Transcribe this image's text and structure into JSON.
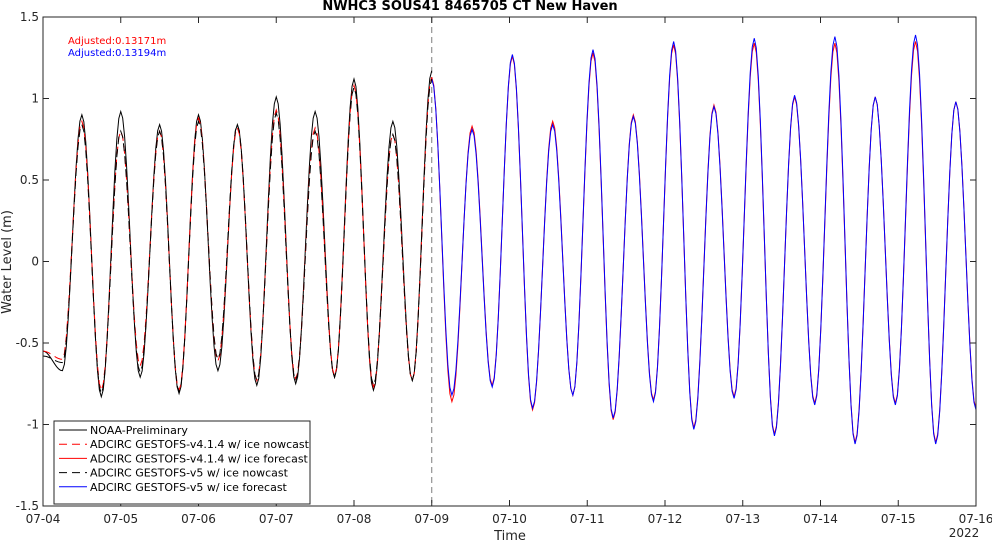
{
  "chart_data": {
    "type": "line",
    "title": "NWHC3 SOUS41 8465705 CT New Haven",
    "xlabel": "Time",
    "ylabel": "Water Level (m)",
    "x_tick_labels": [
      "07-04",
      "07-05",
      "07-06",
      "07-07",
      "07-08",
      "07-09",
      "07-10",
      "07-11",
      "07-12",
      "07-13",
      "07-14",
      "07-15",
      "07-16"
    ],
    "x_range_days": [
      4,
      16
    ],
    "x_year_label": "2022",
    "y_tick_labels": [
      "1.5",
      "1",
      "0.5",
      "0",
      "-0.5",
      "-1",
      "-1.5"
    ],
    "ylim": [
      -1.5,
      1.5
    ],
    "grid": false,
    "nowcast_end": "07-09",
    "annotations": [
      {
        "text": "Adjusted:0.13171m",
        "color": "#ff0000"
      },
      {
        "text": "Adjusted:0.13194m",
        "color": "#0000ff"
      }
    ],
    "legend_position": "bottom-left",
    "series": [
      {
        "name": "NOAA-Preliminary",
        "color": "#000000",
        "style": "solid",
        "x_start": 4.0,
        "x_end": 9.0,
        "extremes": [
          -0.55,
          -0.67,
          0.9,
          -0.83,
          0.92,
          -0.71,
          0.84,
          -0.81,
          0.9,
          -0.67,
          0.84,
          -0.76,
          1.01,
          -0.75,
          0.92,
          -0.71,
          1.12,
          -0.79,
          0.86,
          -0.73,
          1.17
        ]
      },
      {
        "name": "ADCIRC GESTOFS-v4.1.4 w/ ice nowcast",
        "color": "#ff0000",
        "style": "dashed",
        "x_start": 4.0,
        "x_end": 9.0,
        "extremes": [
          -0.55,
          -0.6,
          0.86,
          -0.79,
          0.8,
          -0.64,
          0.8,
          -0.79,
          0.88,
          -0.61,
          0.82,
          -0.73,
          0.93,
          -0.72,
          0.82,
          -0.7,
          1.08,
          -0.77,
          0.78,
          -0.73,
          1.13
        ]
      },
      {
        "name": "ADCIRC GESTOFS-v4.1.4 w/ ice forecast",
        "color": "#ff0000",
        "style": "solid",
        "x_start": 9.0,
        "x_end": 16.0,
        "extremes": [
          1.13,
          -0.86,
          0.83,
          -0.76,
          1.26,
          -0.91,
          0.86,
          -0.82,
          1.28,
          -0.97,
          0.9,
          -0.85,
          1.33,
          -1.02,
          0.96,
          -0.83,
          1.34,
          -1.06,
          1.01,
          -0.87,
          1.34,
          -1.11,
          1.01,
          -0.87,
          1.35,
          -1.11,
          0.98,
          -0.9
        ]
      },
      {
        "name": "ADCIRC GESTOFS-v5 w/ ice nowcast",
        "color": "#000000",
        "style": "dashed",
        "x_start": 4.0,
        "x_end": 9.0,
        "extremes": [
          -0.58,
          -0.62,
          0.84,
          -0.81,
          0.8,
          -0.68,
          0.8,
          -0.8,
          0.86,
          -0.6,
          0.84,
          -0.73,
          0.91,
          -0.73,
          0.8,
          -0.71,
          1.07,
          -0.76,
          0.78,
          -0.73,
          1.12
        ]
      },
      {
        "name": "ADCIRC GESTOFS-v5 w/ ice forecast",
        "color": "#0000ff",
        "style": "solid",
        "x_start": 9.0,
        "x_end": 16.0,
        "extremes": [
          1.12,
          -0.82,
          0.81,
          -0.77,
          1.27,
          -0.9,
          0.84,
          -0.82,
          1.3,
          -0.96,
          0.89,
          -0.86,
          1.35,
          -1.03,
          0.95,
          -0.84,
          1.37,
          -1.07,
          1.02,
          -0.88,
          1.38,
          -1.12,
          1.01,
          -0.88,
          1.39,
          -1.12,
          0.98,
          -0.91
        ]
      }
    ]
  }
}
